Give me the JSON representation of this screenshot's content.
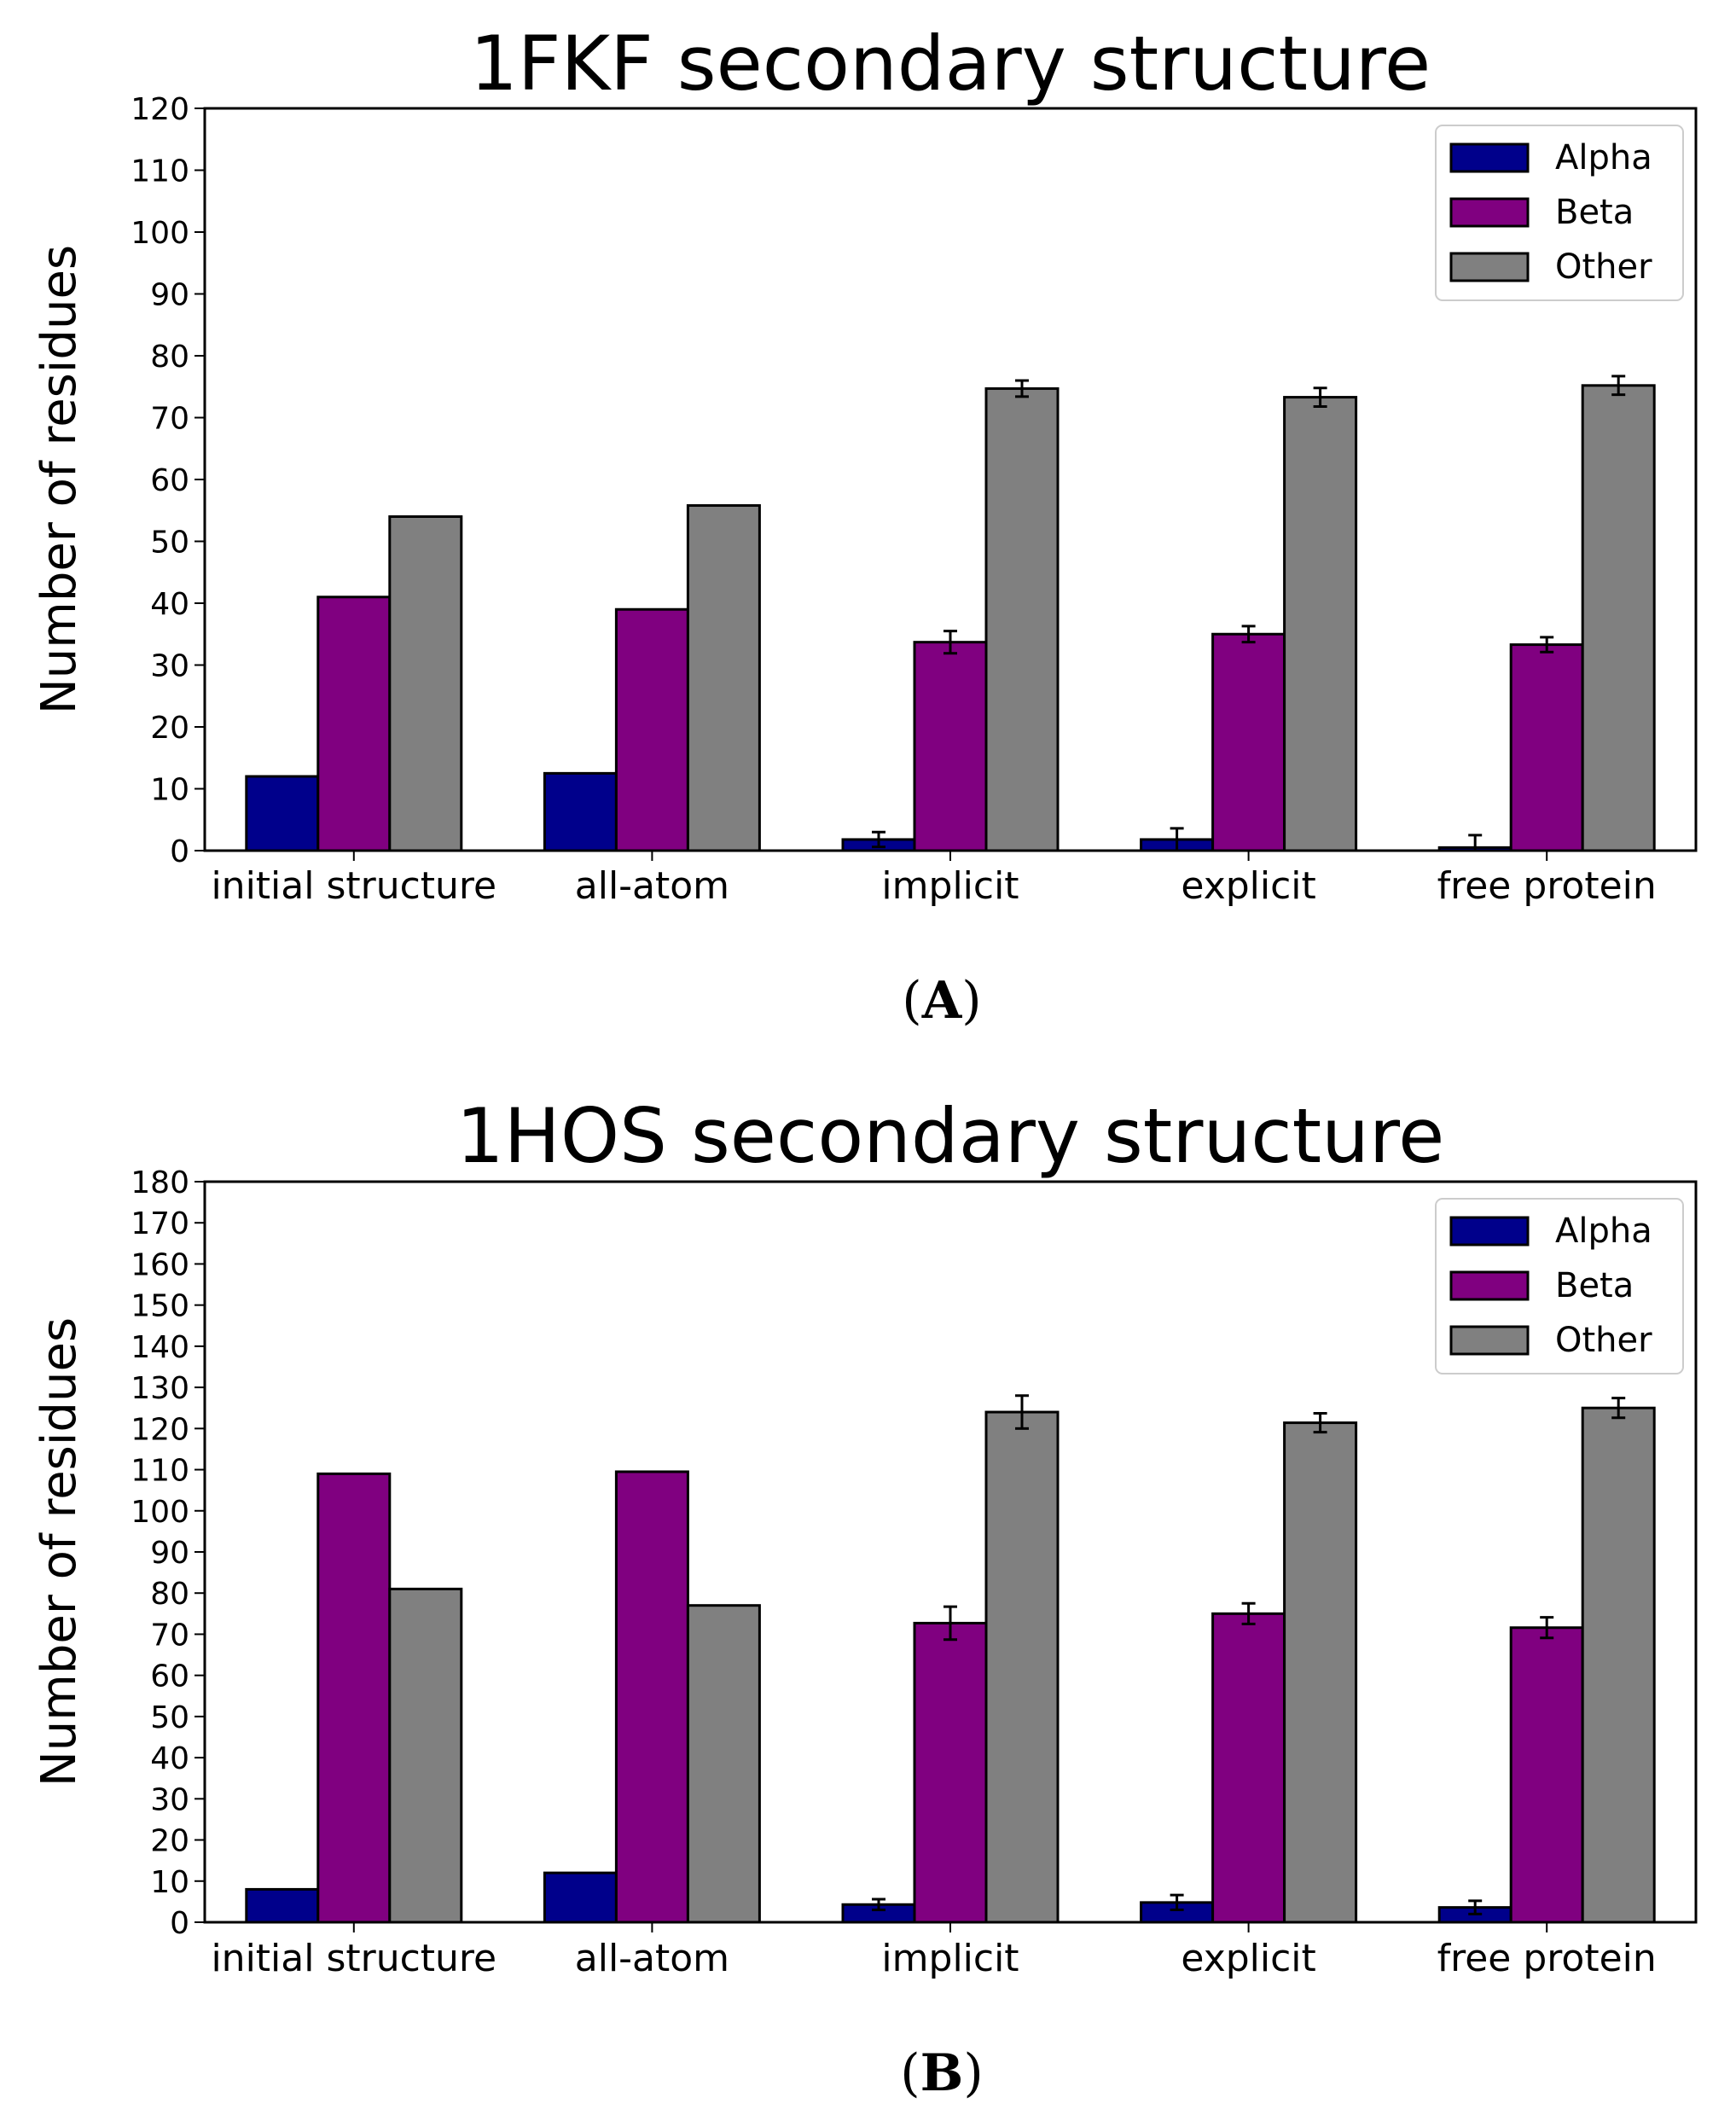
{
  "chart_data": [
    {
      "type": "bar",
      "title": "1FKF secondary structure",
      "panel_label": "A",
      "xlabel": "",
      "ylabel": "Number of residues",
      "ylim": [
        0,
        120
      ],
      "ytick_step": 10,
      "categories": [
        "initial structure",
        "all-atom",
        "implicit",
        "explicit",
        "free protein"
      ],
      "legend_position": "top-right",
      "series": [
        {
          "name": "Alpha",
          "color": "#00008b",
          "values": [
            12,
            12.5,
            1.8,
            1.8,
            0.5
          ],
          "errors": [
            0,
            0,
            1.2,
            1.8,
            2.0
          ]
        },
        {
          "name": "Beta",
          "color": "#800080",
          "values": [
            41,
            39,
            33.7,
            35,
            33.3
          ],
          "errors": [
            0,
            0,
            1.8,
            1.3,
            1.2
          ]
        },
        {
          "name": "Other",
          "color": "#808080",
          "values": [
            54,
            55.8,
            74.7,
            73.3,
            75.2
          ],
          "errors": [
            0,
            0,
            1.3,
            1.5,
            1.5
          ]
        }
      ]
    },
    {
      "type": "bar",
      "title": "1HOS secondary structure",
      "panel_label": "B",
      "xlabel": "",
      "ylabel": "Number of residues",
      "ylim": [
        0,
        180
      ],
      "ytick_step": 10,
      "categories": [
        "initial structure",
        "all-atom",
        "implicit",
        "explicit",
        "free protein"
      ],
      "legend_position": "top-right",
      "series": [
        {
          "name": "Alpha",
          "color": "#00008b",
          "values": [
            8,
            12,
            4.3,
            4.8,
            3.6
          ],
          "errors": [
            0,
            0,
            1.3,
            1.8,
            1.6
          ]
        },
        {
          "name": "Beta",
          "color": "#800080",
          "values": [
            109,
            109.5,
            72.7,
            75,
            71.6
          ],
          "errors": [
            0,
            0,
            4.0,
            2.5,
            2.5
          ]
        },
        {
          "name": "Other",
          "color": "#808080",
          "values": [
            81,
            77,
            124,
            121.4,
            125
          ],
          "errors": [
            0,
            0,
            4.0,
            2.3,
            2.4
          ]
        }
      ]
    }
  ]
}
